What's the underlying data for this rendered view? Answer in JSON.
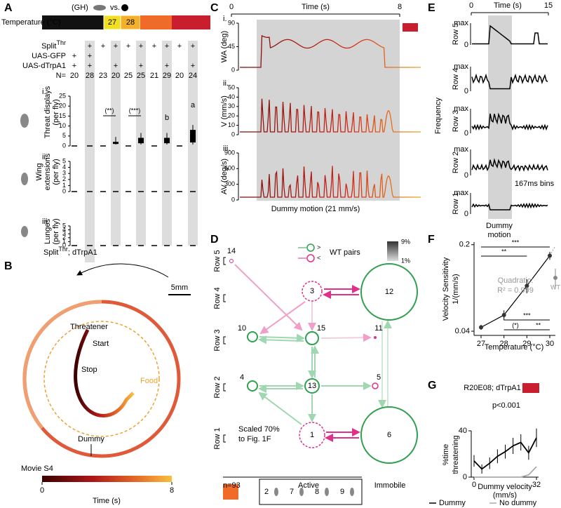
{
  "panel_labels": [
    "A",
    "B",
    "C",
    "D",
    "E",
    "F",
    "G"
  ],
  "panel_a": {
    "comparison": [
      "(GH)",
      "vs."
    ],
    "temperature_label": "Temperature (°C)",
    "temperatures": [
      "27",
      "28"
    ],
    "genotypes": [
      {
        "name": "Split",
        "sup": "Thr",
        "marks": [
          null,
          "+",
          "+",
          "+",
          "+",
          "+",
          "+",
          "+",
          "+",
          "+"
        ]
      },
      {
        "name": "UAS-GFP",
        "marks": [
          "+",
          "+",
          null,
          null,
          null,
          null,
          null,
          null,
          null,
          null
        ]
      },
      {
        "name": "UAS-dTrpA1",
        "marks": [
          "+",
          "+",
          null,
          "+",
          null,
          "+",
          null,
          "+",
          null,
          "+"
        ]
      }
    ],
    "n_label": "N=",
    "n": [
      20,
      28,
      23,
      20,
      25,
      25,
      21,
      29,
      20,
      24
    ],
    "behaviors": [
      {
        "numeral": "i.",
        "ylabel": [
          "Threat displays",
          "(per fly)"
        ],
        "ylim": [
          0,
          25
        ],
        "yticks": [
          0,
          5,
          10,
          15,
          20,
          25
        ],
        "medians": [
          0,
          0,
          0,
          1,
          0,
          3,
          0,
          3,
          0,
          7
        ]
      },
      {
        "numeral": "ii.",
        "ylabel": [
          "Wing",
          "extensions",
          "(per fly)"
        ],
        "ylim": [
          0,
          5
        ],
        "yticks": [
          0,
          1,
          2,
          3,
          4,
          5
        ],
        "medians": [
          0,
          0,
          0,
          0,
          0,
          0,
          0,
          0,
          0,
          0
        ]
      },
      {
        "numeral": "iii.",
        "ylabel": [
          "Lunges",
          "(per fly)"
        ],
        "ylim": [
          0,
          5
        ],
        "yticks": [
          0,
          1,
          2,
          3,
          4,
          5
        ],
        "medians": [
          0,
          0,
          0,
          0,
          0,
          0,
          0,
          0,
          0,
          0
        ]
      }
    ],
    "significance": [
      "(**)",
      "(***)",
      "b",
      "a"
    ],
    "genotype_footer": [
      "Split",
      "Thr",
      "; dTrpA1"
    ]
  },
  "panel_b": {
    "scale_label": "5mm",
    "labels": {
      "threatener": "Threatener",
      "start": "Start",
      "stop": "Stop",
      "food": "Food",
      "dummy": "Dummy"
    },
    "movie": "Movie S4",
    "colorbar": {
      "ticks": [
        0,
        8
      ],
      "label": "Time (s)"
    }
  },
  "panel_c": {
    "time_label": "Time (s)",
    "xticks": [
      0,
      8
    ],
    "traces": [
      {
        "numeral": "i.",
        "ylabel": "WA (deg)",
        "ylim": [
          0,
          90
        ],
        "yticks": [
          0,
          45,
          90
        ]
      },
      {
        "numeral": "ii.",
        "ylabel": "V (mm/s)",
        "ylim": [
          0,
          50
        ],
        "yticks": [
          0,
          10,
          20,
          30,
          40,
          50
        ]
      },
      {
        "numeral": "iii.",
        "ylabel": "AV (deg/s)",
        "ylim": [
          0,
          900
        ],
        "yticks": [
          0,
          300,
          600,
          900
        ]
      }
    ],
    "stimulus_label": "Dummy motion (21 mm/s)"
  },
  "panel_d": {
    "legend": {
      "greater": ">",
      "less": "<",
      "label": "WT pairs",
      "max": "9%",
      "min": "1%"
    },
    "rows": [
      "Row 5",
      "Row 4",
      "Row 3",
      "Row 2",
      "Row 1"
    ],
    "nodes": [
      14,
      3,
      12,
      10,
      15,
      11,
      4,
      13,
      5,
      1,
      6
    ],
    "note": [
      "Scaled 70%",
      "to Fig. 1F"
    ],
    "n": "n=93",
    "groups": [
      "Active",
      "Immobile"
    ],
    "key": [
      2,
      7,
      8,
      9
    ]
  },
  "panel_e": {
    "time_label": "Time (s)",
    "xticks": [
      0,
      15
    ],
    "rows": [
      "Row 5",
      "Row 4",
      "Row 3",
      "Row 2",
      "Row 1"
    ],
    "ymax_label": "max",
    "ymin_label": 0,
    "ylabel": "Frequency",
    "bin_label": "167ms bins",
    "stimulus_label": [
      "Dummy",
      "motion"
    ]
  },
  "panel_f": {
    "type": "line",
    "ylabel": [
      "Velocity Sensitivity",
      "1/(mm/s)"
    ],
    "xlabel": "Temperature (°C)",
    "x": [
      27,
      28,
      29,
      30
    ],
    "values": [
      0.043,
      0.054,
      0.093,
      0.163
    ],
    "errors": [
      0.002,
      0.005,
      0.012,
      0.012
    ],
    "xlim": [
      27,
      30
    ],
    "ylim": [
      0.037,
      0.21
    ],
    "log_y": true,
    "xticks": [
      27,
      28,
      29,
      30
    ],
    "yticks": [
      0.04,
      0.2
    ],
    "fit_label": [
      "Quadratic:",
      "R² = 0.999"
    ],
    "wt": {
      "label": "WT",
      "value": 0.108,
      "error": 0.02
    },
    "significance": [
      "***",
      "**",
      "***",
      "(*)",
      "**"
    ]
  },
  "panel_g": {
    "type": "line",
    "title": "R20E08; dTrpA1",
    "annotation": "p<0.001",
    "ylabel": [
      "%time",
      "threatening"
    ],
    "xlabel": [
      "Dummy velocity",
      "(mm/s)"
    ],
    "x": [
      0,
      4,
      8,
      12,
      16,
      20,
      24,
      28,
      32
    ],
    "xlim": [
      0,
      32
    ],
    "xticks": [
      0,
      32
    ],
    "ylim": [
      0,
      40
    ],
    "yticks": [
      0,
      40
    ],
    "series": [
      {
        "name": "Dummy",
        "color": "#000000",
        "values": [
          14,
          7,
          12,
          18,
          22,
          27,
          30,
          21,
          34
        ],
        "errors": [
          5,
          4,
          5,
          6,
          6,
          7,
          7,
          6,
          8
        ]
      },
      {
        "name": "No dummy",
        "color": "#aaaaaa",
        "values": [
          0,
          0,
          0,
          0,
          0,
          0,
          0,
          2,
          9
        ]
      }
    ]
  }
}
